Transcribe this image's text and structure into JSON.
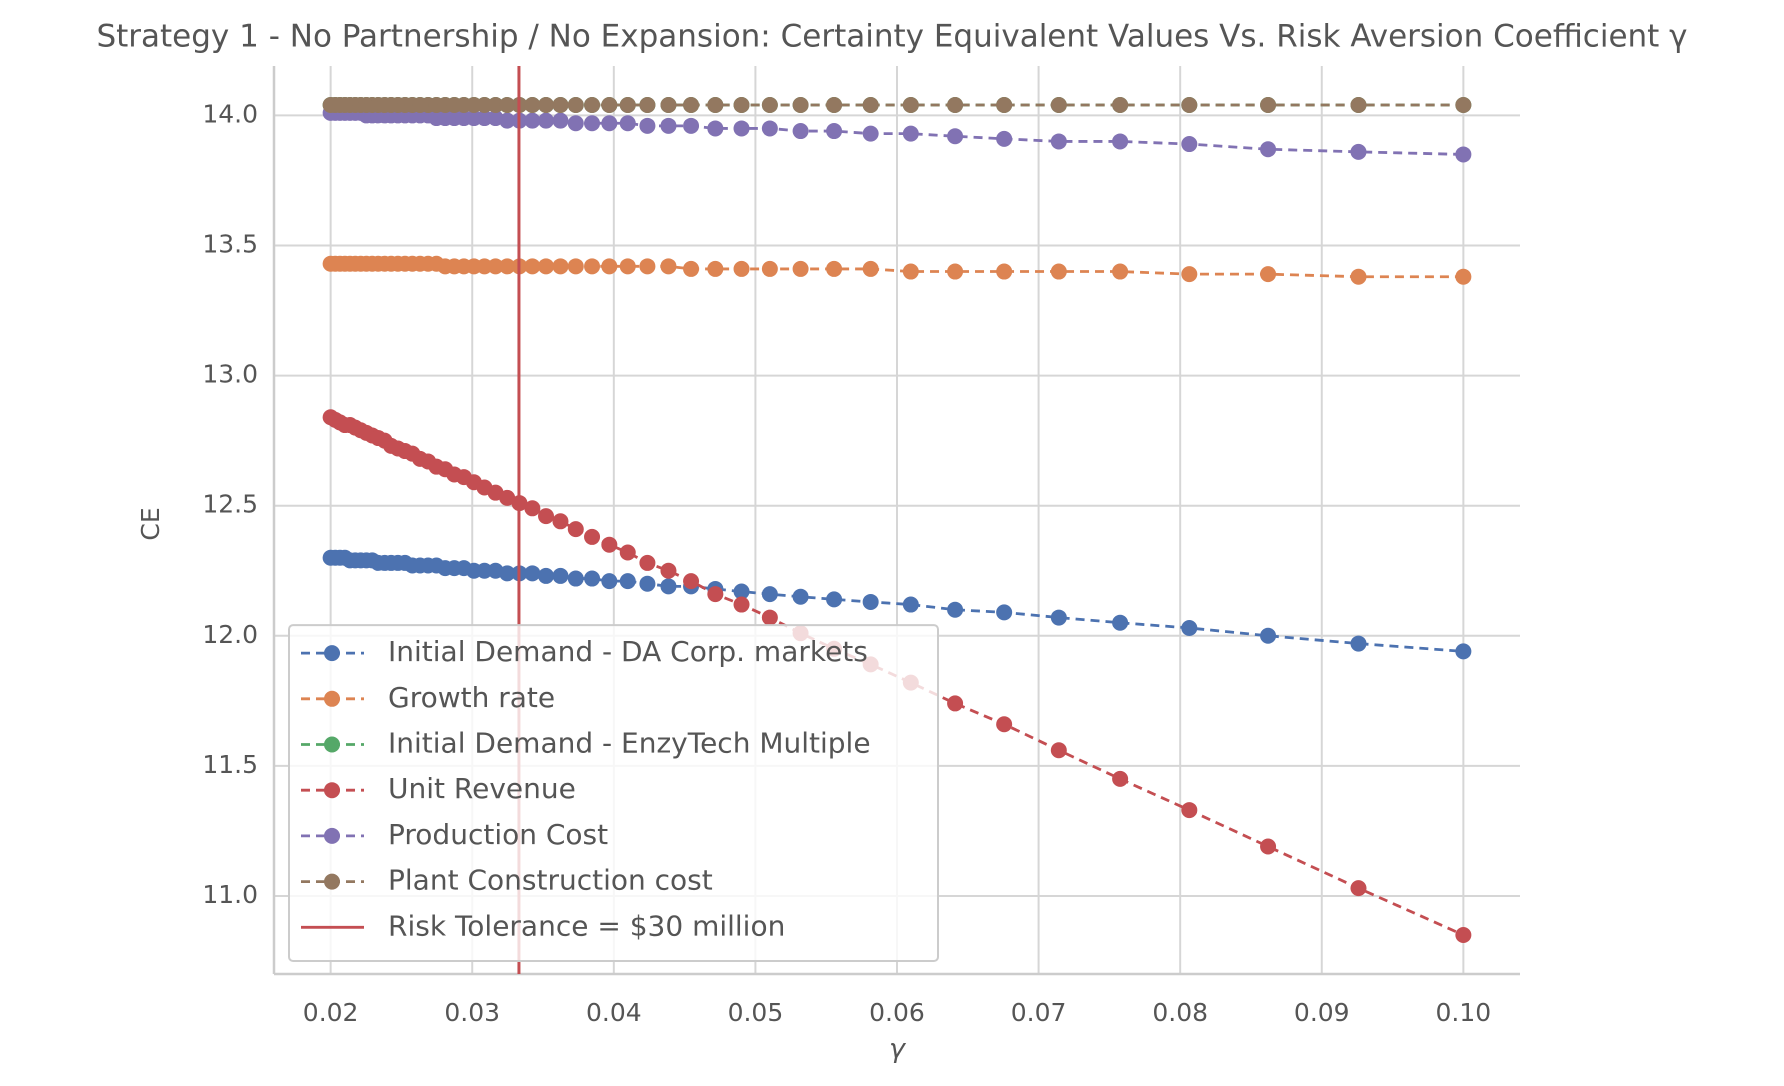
{
  "chart_data": {
    "type": "line",
    "title": "Strategy 1 - No Partnership / No Expansion: Certainty Equivalent Values Vs. Risk Aversion Coefficient γ",
    "xlabel": "γ",
    "ylabel": "CE",
    "x": [
      0.02,
      0.020325,
      0.020661,
      0.021008,
      0.021368,
      0.021739,
      0.022124,
      0.022523,
      0.022936,
      0.023364,
      0.02381,
      0.024272,
      0.024752,
      0.025253,
      0.025773,
      0.026316,
      0.026882,
      0.027473,
      0.02809,
      0.028736,
      0.029412,
      0.03012,
      0.030864,
      0.031646,
      0.032468,
      0.033333,
      0.034247,
      0.035211,
      0.036232,
      0.037313,
      0.038462,
      0.039683,
      0.040984,
      0.042373,
      0.04386,
      0.045455,
      0.04717,
      0.04902,
      0.05102,
      0.053191,
      0.055556,
      0.05814,
      0.060976,
      0.064103,
      0.067568,
      0.071429,
      0.075758,
      0.080645,
      0.086207,
      0.092593,
      0.1
    ],
    "series": [
      {
        "name": "Initial Demand - DA Corp. markets",
        "color": "#4c72b0",
        "values": [
          12.3,
          12.3,
          12.3,
          12.3,
          12.29,
          12.29,
          12.29,
          12.29,
          12.29,
          12.28,
          12.28,
          12.28,
          12.28,
          12.28,
          12.27,
          12.27,
          12.27,
          12.27,
          12.26,
          12.26,
          12.26,
          12.25,
          12.25,
          12.25,
          12.24,
          12.24,
          12.24,
          12.23,
          12.23,
          12.22,
          12.22,
          12.21,
          12.21,
          12.2,
          12.19,
          12.19,
          12.18,
          12.17,
          12.16,
          12.15,
          12.14,
          12.13,
          12.12,
          12.1,
          12.09,
          12.07,
          12.05,
          12.03,
          12.0,
          11.97,
          11.94
        ]
      },
      {
        "name": "Growth rate",
        "color": "#dd8452",
        "values": [
          13.43,
          13.43,
          13.43,
          13.43,
          13.43,
          13.43,
          13.43,
          13.43,
          13.43,
          13.43,
          13.43,
          13.43,
          13.43,
          13.43,
          13.43,
          13.43,
          13.43,
          13.43,
          13.42,
          13.42,
          13.42,
          13.42,
          13.42,
          13.42,
          13.42,
          13.42,
          13.42,
          13.42,
          13.42,
          13.42,
          13.42,
          13.42,
          13.42,
          13.42,
          13.42,
          13.41,
          13.41,
          13.41,
          13.41,
          13.41,
          13.41,
          13.41,
          13.4,
          13.4,
          13.4,
          13.4,
          13.4,
          13.39,
          13.39,
          13.38,
          13.38
        ]
      },
      {
        "name": "Initial Demand - EnzyTech Multiple",
        "color": "#55a868",
        "values": [
          14.04,
          14.04,
          14.04,
          14.04,
          14.04,
          14.04,
          14.04,
          14.04,
          14.04,
          14.04,
          14.04,
          14.04,
          14.04,
          14.04,
          14.04,
          14.04,
          14.04,
          14.04,
          14.04,
          14.04,
          14.04,
          14.04,
          14.04,
          14.04,
          14.04,
          14.04,
          14.04,
          14.04,
          14.04,
          14.04,
          14.04,
          14.04,
          14.04,
          14.04,
          14.04,
          14.04,
          14.04,
          14.04,
          14.04,
          14.04,
          14.04,
          14.04,
          14.04,
          14.04,
          14.04,
          14.04,
          14.04,
          14.04,
          14.04,
          14.04,
          14.04
        ]
      },
      {
        "name": "Unit Revenue",
        "color": "#c44e52",
        "values": [
          12.84,
          12.83,
          12.82,
          12.81,
          12.81,
          12.8,
          12.79,
          12.78,
          12.77,
          12.76,
          12.75,
          12.73,
          12.72,
          12.71,
          12.7,
          12.68,
          12.67,
          12.65,
          12.64,
          12.62,
          12.61,
          12.59,
          12.57,
          12.55,
          12.53,
          12.51,
          12.49,
          12.46,
          12.44,
          12.41,
          12.38,
          12.35,
          12.32,
          12.28,
          12.25,
          12.21,
          12.16,
          12.12,
          12.07,
          12.01,
          11.95,
          11.89,
          11.82,
          11.74,
          11.66,
          11.56,
          11.45,
          11.33,
          11.19,
          11.03,
          10.85
        ]
      },
      {
        "name": "Production Cost",
        "color": "#8172b3",
        "values": [
          14.01,
          14.01,
          14.01,
          14.01,
          14.01,
          14.01,
          14.01,
          14.0,
          14.0,
          14.0,
          14.0,
          14.0,
          14.0,
          14.0,
          14.0,
          14.0,
          14.0,
          13.99,
          13.99,
          13.99,
          13.99,
          13.99,
          13.99,
          13.99,
          13.98,
          13.98,
          13.98,
          13.98,
          13.98,
          13.97,
          13.97,
          13.97,
          13.97,
          13.96,
          13.96,
          13.96,
          13.95,
          13.95,
          13.95,
          13.94,
          13.94,
          13.93,
          13.93,
          13.92,
          13.91,
          13.9,
          13.9,
          13.89,
          13.87,
          13.86,
          13.85
        ]
      },
      {
        "name": "Plant Construction cost",
        "color": "#937860",
        "values": [
          14.04,
          14.04,
          14.04,
          14.04,
          14.04,
          14.04,
          14.04,
          14.04,
          14.04,
          14.04,
          14.04,
          14.04,
          14.04,
          14.04,
          14.04,
          14.04,
          14.04,
          14.04,
          14.04,
          14.04,
          14.04,
          14.04,
          14.04,
          14.04,
          14.04,
          14.04,
          14.04,
          14.04,
          14.04,
          14.04,
          14.04,
          14.04,
          14.04,
          14.04,
          14.04,
          14.04,
          14.04,
          14.04,
          14.04,
          14.04,
          14.04,
          14.04,
          14.04,
          14.04,
          14.04,
          14.04,
          14.04,
          14.04,
          14.04,
          14.04,
          14.04
        ]
      }
    ],
    "vline": {
      "x": 0.0333,
      "label": "Risk Tolerance = $30 million",
      "color": "#c44e52"
    },
    "xlim": [
      0.016,
      0.104
    ],
    "xticks": [
      0.02,
      0.03,
      0.04,
      0.05,
      0.06,
      0.07,
      0.08,
      0.09,
      {
        "value": 0.1,
        "label": "0.10"
      }
    ],
    "ylim": [
      10.7,
      14.19
    ],
    "yticks": [
      {
        "value": 11,
        "label": "11.0"
      },
      11.5,
      {
        "value": 12,
        "label": "12.0"
      },
      12.5,
      {
        "value": 13,
        "label": "13.0"
      },
      13.5,
      {
        "value": 14,
        "label": "14.0"
      }
    ],
    "grid": true,
    "legend": "lower left"
  }
}
